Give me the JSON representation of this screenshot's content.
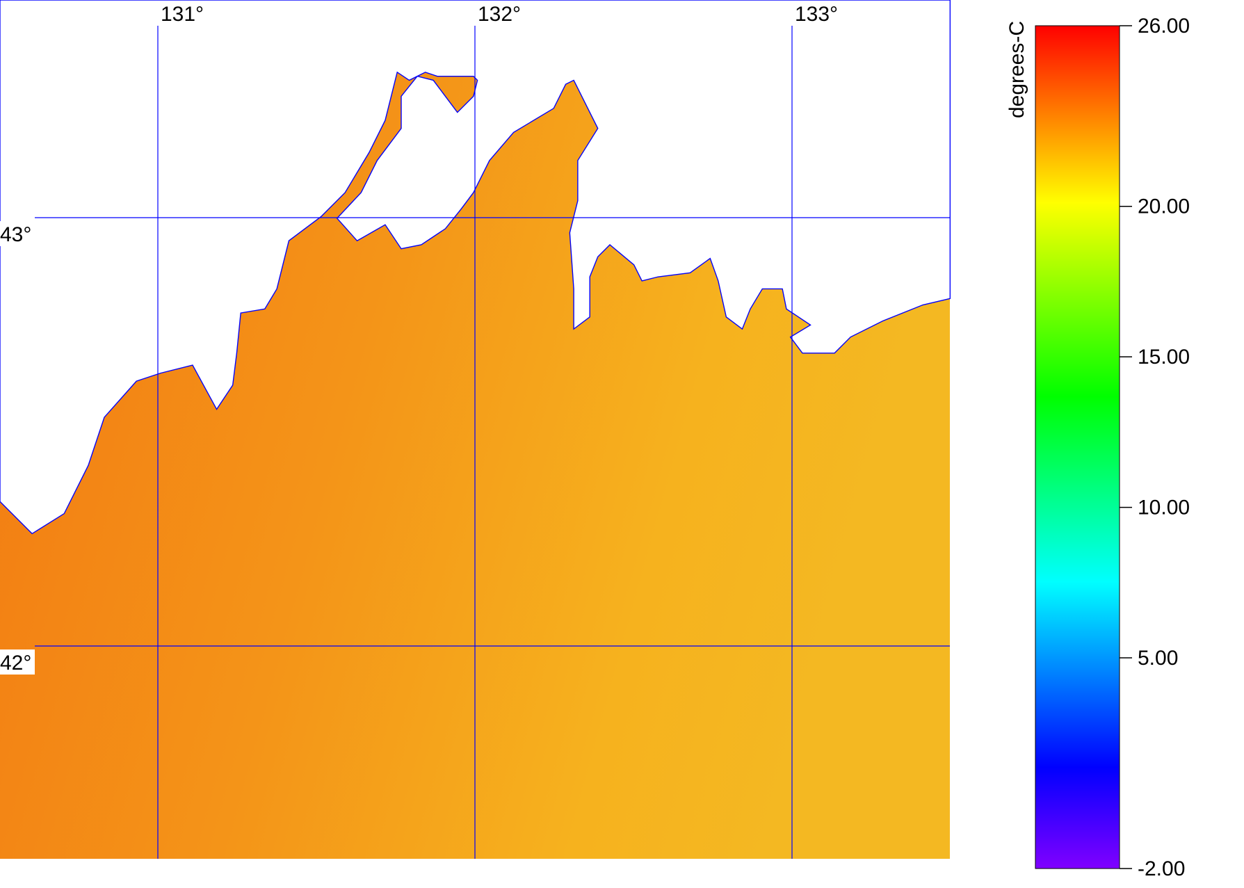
{
  "map": {
    "longitudes": [
      {
        "value": 131,
        "label": "131°"
      },
      {
        "value": 132,
        "label": "132°"
      },
      {
        "value": 133,
        "label": "133°"
      }
    ],
    "latitudes": [
      {
        "value": 43,
        "label": "43°"
      },
      {
        "value": 42,
        "label": "42°"
      }
    ]
  },
  "colorbar": {
    "title": "degrees-C",
    "range": [
      -2,
      26
    ],
    "ticks": [
      {
        "value": 26,
        "label": "26.00"
      },
      {
        "value": 20,
        "label": "20.00"
      },
      {
        "value": 15,
        "label": "15.00"
      },
      {
        "value": 10,
        "label": "10.00"
      },
      {
        "value": 5,
        "label": "5.00"
      },
      {
        "value": -2,
        "label": "-2.00"
      }
    ]
  }
}
